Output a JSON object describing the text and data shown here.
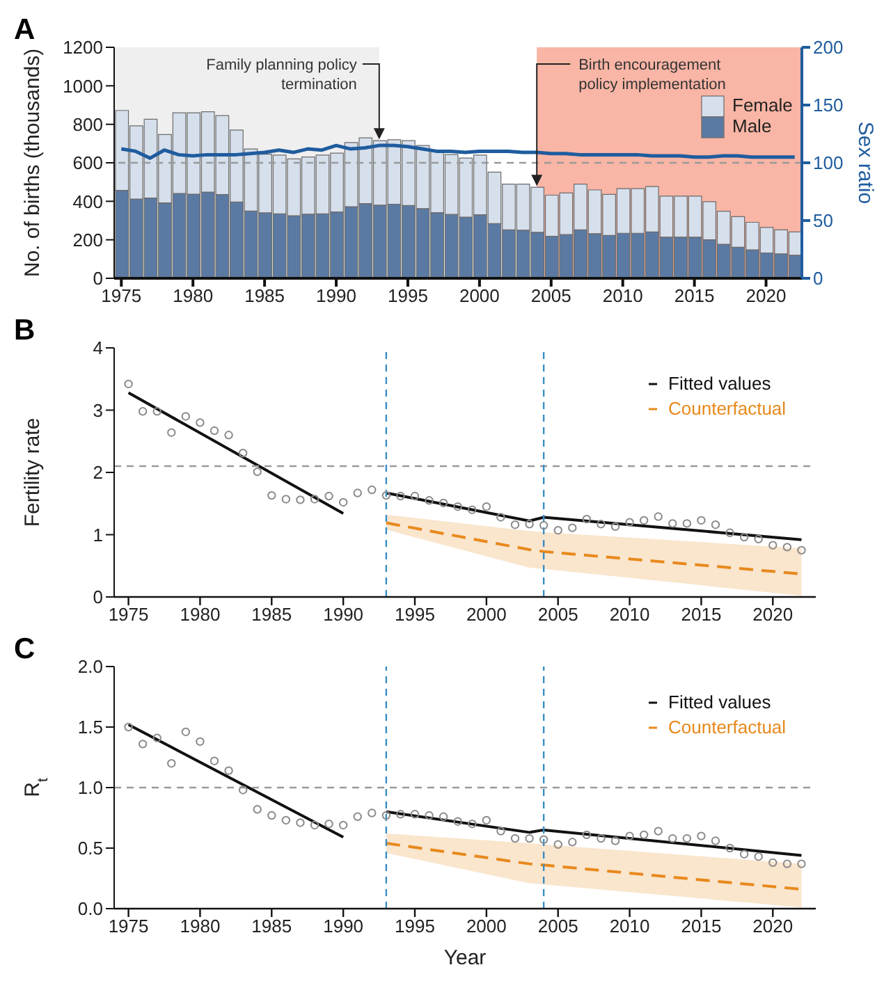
{
  "chart_data": [
    {
      "type": "bar",
      "title": "A",
      "ylabel": "No. of births (thousands)",
      "y2label": "Sex ratio",
      "stacked": true,
      "legend": "top right",
      "x": [
        1975,
        1976,
        1977,
        1978,
        1979,
        1980,
        1981,
        1982,
        1983,
        1984,
        1985,
        1986,
        1987,
        1988,
        1989,
        1990,
        1991,
        1992,
        1993,
        1994,
        1995,
        1996,
        1997,
        1998,
        1999,
        2000,
        2001,
        2002,
        2003,
        2004,
        2005,
        2006,
        2007,
        2008,
        2009,
        2010,
        2011,
        2012,
        2013,
        2014,
        2015,
        2016,
        2017,
        2018,
        2019,
        2020,
        2021,
        2022
      ],
      "series": [
        {
          "name": "Male",
          "color": "#5b7aa3",
          "values": [
            457,
            412,
            417,
            392,
            441,
            437,
            448,
            435,
            396,
            349,
            340,
            335,
            325,
            333,
            335,
            345,
            372,
            388,
            380,
            385,
            378,
            362,
            341,
            332,
            318,
            330,
            284,
            252,
            250,
            239,
            218,
            227,
            252,
            232,
            223,
            234,
            234,
            241,
            214,
            214,
            214,
            200,
            177,
            161,
            148,
            132,
            127,
            120
          ]
        },
        {
          "name": "Female",
          "color": "#d6dfec",
          "values": [
            415,
            380,
            409,
            355,
            419,
            423,
            417,
            410,
            374,
            323,
            305,
            305,
            295,
            297,
            305,
            305,
            333,
            342,
            335,
            335,
            337,
            328,
            325,
            311,
            307,
            310,
            268,
            237,
            239,
            234,
            214,
            216,
            237,
            227,
            213,
            232,
            232,
            236,
            213,
            213,
            213,
            198,
            171,
            159,
            143,
            132,
            125,
            121
          ]
        },
        {
          "type": "line",
          "axis": "y2",
          "color": "#1f5c9e",
          "values": [
            112,
            110,
            104,
            111,
            107,
            106,
            107,
            107,
            107,
            108,
            109,
            111,
            109,
            112,
            111,
            115,
            112,
            113,
            115,
            115,
            114,
            112,
            110,
            110,
            109,
            110,
            110,
            110,
            109,
            109,
            108,
            108,
            107,
            107,
            107,
            107,
            107,
            106,
            106,
            106,
            105,
            105,
            106,
            106,
            105,
            105,
            105,
            105
          ]
        }
      ],
      "xlim": [
        1974.5,
        2022.5
      ],
      "xticks": [
        1975,
        1980,
        1985,
        1990,
        1995,
        2000,
        2005,
        2010,
        2015,
        2020
      ],
      "ylim": [
        0,
        1200
      ],
      "yticks": [
        0,
        200,
        400,
        600,
        800,
        1000,
        1200
      ],
      "y2lim": [
        0,
        200
      ],
      "y2ticks": [
        0,
        50,
        100,
        150,
        200
      ],
      "ref_lines": [
        {
          "axis": "y2",
          "value": 100,
          "color": "#9a9a9a",
          "line_style": "dashed"
        }
      ],
      "bands": [
        {
          "axis": "x",
          "from": 1974.5,
          "to": 1993,
          "color": "#efefef"
        },
        {
          "axis": "x",
          "from": 2004,
          "to": 2022.5,
          "color": "#f9b5a5"
        }
      ],
      "annotations": [
        {
          "text": "Family planning policy termination",
          "x": 1993,
          "y": 715
        },
        {
          "text": "Birth encouragement policy implementation",
          "x": 2004,
          "y": 473
        }
      ]
    },
    {
      "type": "line",
      "title": "B",
      "ylabel": "Fertility rate",
      "legend": "top right",
      "x": [
        1975,
        1976,
        1977,
        1978,
        1979,
        1980,
        1981,
        1982,
        1983,
        1984,
        1985,
        1986,
        1987,
        1988,
        1989,
        1990,
        1991,
        1992,
        1993,
        1994,
        1995,
        1996,
        1997,
        1998,
        1999,
        2000,
        2001,
        2002,
        2003,
        2004,
        2005,
        2006,
        2007,
        2008,
        2009,
        2010,
        2011,
        2012,
        2013,
        2014,
        2015,
        2016,
        2017,
        2018,
        2019,
        2020,
        2021,
        2022
      ],
      "series": [
        {
          "type": "scatter",
          "color": "#8a8a8a",
          "marker": "circle",
          "values": [
            3.42,
            2.98,
            2.98,
            2.64,
            2.9,
            2.8,
            2.67,
            2.6,
            2.31,
            2.01,
            1.63,
            1.57,
            1.56,
            1.57,
            1.62,
            1.52,
            1.67,
            1.72,
            1.63,
            1.62,
            1.62,
            1.55,
            1.51,
            1.45,
            1.4,
            1.45,
            1.28,
            1.16,
            1.17,
            1.15,
            1.07,
            1.11,
            1.25,
            1.17,
            1.13,
            1.2,
            1.23,
            1.29,
            1.18,
            1.18,
            1.23,
            1.16,
            1.03,
            0.96,
            0.93,
            0.83,
            0.8,
            0.75
          ]
        },
        {
          "name": "Fitted values",
          "color": "#111111",
          "line_style": "solid",
          "x": [
            1975,
            1990,
            1991,
            1993,
            2003,
            2004,
            2022
          ],
          "values": [
            3.28,
            1.34,
            null,
            1.67,
            1.22,
            1.28,
            0.92
          ]
        },
        {
          "name": "Counterfactual",
          "color": "#e8891c",
          "line_style": "dashed",
          "x": [
            1993,
            2003,
            2004,
            2022
          ],
          "values": [
            1.19,
            0.76,
            0.73,
            0.37
          ],
          "lower": [
            1.08,
            0.47,
            0.45,
            0.02
          ],
          "upper": [
            1.32,
            1.06,
            1.04,
            0.78
          ]
        }
      ],
      "xlim": [
        1974,
        2023
      ],
      "xticks": [
        1975,
        1980,
        1985,
        1990,
        1995,
        2000,
        2005,
        2010,
        2015,
        2020
      ],
      "ylim": [
        0,
        4
      ],
      "yticks": [
        0,
        1,
        2,
        3,
        4
      ],
      "ref_lines": [
        {
          "axis": "y",
          "value": 2.1,
          "color": "#9a9a9a",
          "line_style": "dashed"
        },
        {
          "axis": "x",
          "value": 1993,
          "color": "#3a8ec4",
          "line_style": "dashed"
        },
        {
          "axis": "x",
          "value": 2004,
          "color": "#3a8ec4",
          "line_style": "dashed"
        }
      ]
    },
    {
      "type": "line",
      "title": "C",
      "ylabel": "R$_{t}$",
      "xlabel": "Year",
      "legend": "top right",
      "x": [
        1975,
        1976,
        1977,
        1978,
        1979,
        1980,
        1981,
        1982,
        1983,
        1984,
        1985,
        1986,
        1987,
        1988,
        1989,
        1990,
        1991,
        1992,
        1993,
        1994,
        1995,
        1996,
        1997,
        1998,
        1999,
        2000,
        2001,
        2002,
        2003,
        2004,
        2005,
        2006,
        2007,
        2008,
        2009,
        2010,
        2011,
        2012,
        2013,
        2014,
        2015,
        2016,
        2017,
        2018,
        2019,
        2020,
        2021,
        2022
      ],
      "series": [
        {
          "type": "scatter",
          "color": "#8a8a8a",
          "marker": "circle",
          "values": [
            1.5,
            1.36,
            1.41,
            1.2,
            1.46,
            1.38,
            1.22,
            1.14,
            0.98,
            0.82,
            0.77,
            0.73,
            0.71,
            0.69,
            0.7,
            0.69,
            0.76,
            0.79,
            0.77,
            0.78,
            0.78,
            0.77,
            0.76,
            0.72,
            0.7,
            0.73,
            0.64,
            0.58,
            0.58,
            0.57,
            0.53,
            0.55,
            0.61,
            0.58,
            0.56,
            0.6,
            0.61,
            0.64,
            0.58,
            0.58,
            0.6,
            0.56,
            0.5,
            0.45,
            0.43,
            0.38,
            0.37,
            0.37
          ]
        },
        {
          "name": "Fitted values",
          "color": "#111111",
          "line_style": "solid",
          "x": [
            1975,
            1990,
            1991,
            1993,
            2003,
            2004,
            2022
          ],
          "values": [
            1.52,
            0.59,
            null,
            0.8,
            0.63,
            0.65,
            0.44
          ]
        },
        {
          "name": "Counterfactual",
          "color": "#e8891c",
          "line_style": "dashed",
          "x": [
            1993,
            2003,
            2004,
            2022
          ],
          "values": [
            0.54,
            0.37,
            0.36,
            0.16
          ],
          "lower": [
            0.46,
            0.21,
            0.2,
            0.01
          ],
          "upper": [
            0.62,
            0.54,
            0.53,
            0.37
          ]
        }
      ],
      "xlim": [
        1974,
        2023
      ],
      "xticks": [
        1975,
        1980,
        1985,
        1990,
        1995,
        2000,
        2005,
        2010,
        2015,
        2020
      ],
      "ylim": [
        0,
        2
      ],
      "yticks": [
        {
          "value": 0,
          "label": "0.0"
        },
        {
          "value": 0.5,
          "label": "0.5"
        },
        {
          "value": 1,
          "label": "1.0"
        },
        {
          "value": 1.5,
          "label": "1.5"
        },
        {
          "value": 2,
          "label": "2.0"
        }
      ],
      "ref_lines": [
        {
          "axis": "y",
          "value": 1,
          "color": "#9a9a9a",
          "line_style": "dashed"
        },
        {
          "axis": "x",
          "value": 1993,
          "color": "#3a8ec4",
          "line_style": "dashed"
        },
        {
          "axis": "x",
          "value": 2004,
          "color": "#3a8ec4",
          "line_style": "dashed"
        }
      ]
    }
  ]
}
